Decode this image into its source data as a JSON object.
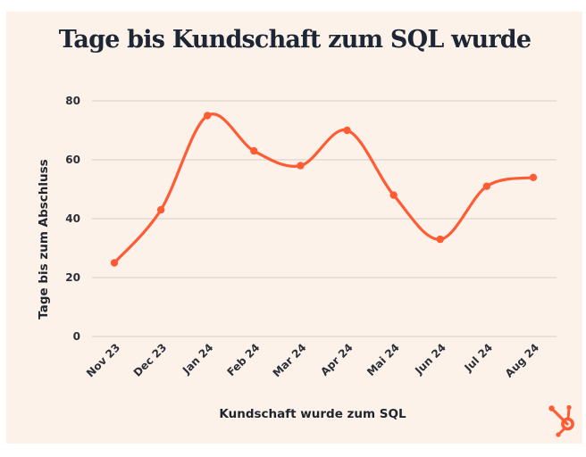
{
  "chart_data": {
    "type": "line",
    "title": "Tage bis Kundschaft zum SQL wurde",
    "xlabel": "Kundschaft wurde zum SQL",
    "ylabel": "Tage bis zum Abschluss",
    "categories": [
      "Nov 23",
      "Dec 23",
      "Jan 24",
      "Feb 24",
      "Mar 24",
      "Apr 24",
      "Mai 24",
      "Jun 24",
      "Jul 24",
      "Aug 24"
    ],
    "series": [
      {
        "name": "Tage bis zum Abschluss",
        "values": [
          25,
          43,
          75,
          63,
          58,
          70,
          48,
          33,
          51,
          54
        ],
        "color": "#ff5c35",
        "smooth": true,
        "markers": true
      }
    ],
    "ylim": [
      0,
      80
    ],
    "yticks": [
      0,
      20,
      40,
      60,
      80
    ],
    "grid": true,
    "legend": "none",
    "xtick_rotation_deg": -45
  },
  "colors": {
    "background": "#fcf2e9",
    "line": "#ff5c35",
    "grid": "#dcd6cf",
    "title": "#1c2634",
    "logo": "#ff5c35"
  },
  "branding": {
    "logo": "hubspot-sprocket-icon"
  }
}
